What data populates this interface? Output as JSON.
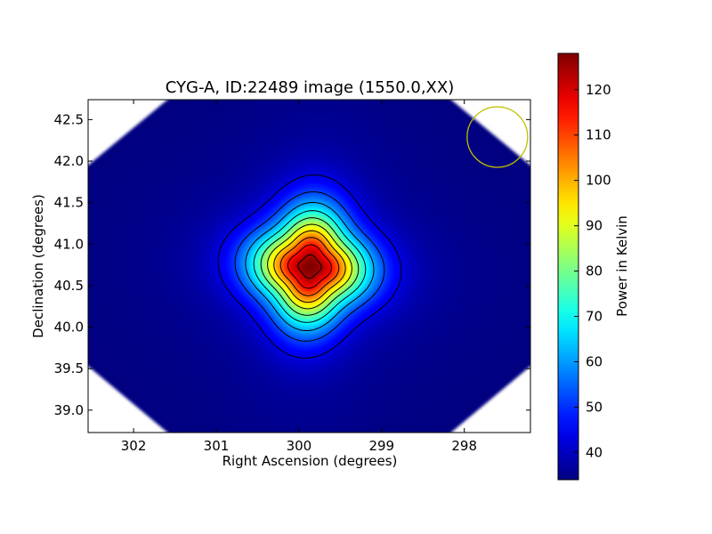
{
  "chart_data": {
    "type": "heatmap",
    "title": "CYG-A, ID:22489 image (1550.0,XX)",
    "xlabel": "Right Ascension (degrees)",
    "ylabel": "Declination (degrees)",
    "xlim": [
      302.55,
      297.2
    ],
    "ylim": [
      38.73,
      42.74
    ],
    "x_ticks": [
      302,
      301,
      300,
      299,
      298
    ],
    "x_tick_labels": [
      "302",
      "301",
      "300",
      "299",
      "298"
    ],
    "y_ticks": [
      39.0,
      39.5,
      40.0,
      40.5,
      41.0,
      41.5,
      42.0,
      42.5
    ],
    "y_tick_labels": [
      "39.0",
      "39.5",
      "40.0",
      "40.5",
      "41.0",
      "41.5",
      "42.0",
      "42.5"
    ],
    "colormap": "jet",
    "grid": false,
    "source": {
      "ra": 299.87,
      "dec": 40.73,
      "peak_kelvin": 128,
      "background_kelvin": 34
    },
    "contour_levels_kelvin": [
      43,
      52,
      61,
      70,
      79,
      88,
      97,
      106,
      115,
      124
    ],
    "beam": {
      "ra": 297.6,
      "dec": 42.29,
      "color": "#bfbf00"
    },
    "colorbar": {
      "label": "Power in Kelvin",
      "min": 34,
      "max": 128,
      "ticks": [
        40,
        50,
        60,
        70,
        80,
        90,
        100,
        110,
        120
      ],
      "tick_labels": [
        "40",
        "50",
        "60",
        "70",
        "80",
        "90",
        "100",
        "110",
        "120"
      ]
    }
  }
}
